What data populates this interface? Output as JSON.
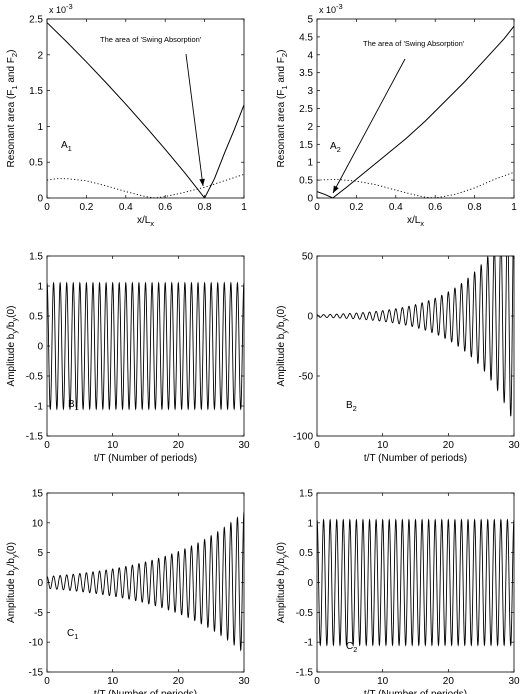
{
  "chart_data": [
    {
      "id": "A1",
      "type": "line",
      "panel_label": "A",
      "panel_sub": "1",
      "ylabel": "Resonant area (F_1 and F_2)",
      "xlabel": "x/L_x",
      "exponent": "x 10^-3",
      "xlim": [
        0,
        1
      ],
      "ylim": [
        0,
        2.5
      ],
      "xticks": [
        0,
        0.2,
        0.4,
        0.6,
        0.8,
        1
      ],
      "yticks": [
        0,
        0.5,
        1,
        1.5,
        2,
        2.5
      ],
      "annotation": "The area of 'Swing Absorption'",
      "series": [
        {
          "style": "solid",
          "x": [
            0,
            0.1,
            0.2,
            0.3,
            0.4,
            0.5,
            0.6,
            0.7,
            0.8,
            0.85,
            0.9,
            0.95,
            1.0
          ],
          "values": [
            2.45,
            2.18,
            1.9,
            1.61,
            1.31,
            1.0,
            0.68,
            0.35,
            0.0,
            0.27,
            0.62,
            0.95,
            1.3
          ]
        },
        {
          "style": "dotted",
          "x": [
            0,
            0.05,
            0.1,
            0.2,
            0.3,
            0.4,
            0.5,
            0.55,
            0.6,
            0.7,
            0.8,
            0.9,
            1.0
          ],
          "values": [
            0.25,
            0.27,
            0.27,
            0.24,
            0.17,
            0.09,
            0.02,
            0.0,
            0.02,
            0.08,
            0.15,
            0.24,
            0.33
          ]
        }
      ]
    },
    {
      "id": "A2",
      "type": "line",
      "panel_label": "A",
      "panel_sub": "2",
      "ylabel": "Resonant area (F_1 and F_2)",
      "xlabel": "x/L_x",
      "exponent": "x 10^-3",
      "xlim": [
        0,
        1
      ],
      "ylim": [
        0,
        5
      ],
      "xticks": [
        0,
        0.2,
        0.4,
        0.6,
        0.8,
        1
      ],
      "yticks": [
        0,
        0.5,
        1,
        1.5,
        2,
        2.5,
        3,
        3.5,
        4,
        4.5,
        5
      ],
      "annotation": "The area of 'Swing Absorption'",
      "series": [
        {
          "style": "solid",
          "x": [
            0,
            0.04,
            0.08,
            0.15,
            0.25,
            0.35,
            0.45,
            0.55,
            0.65,
            0.75,
            0.85,
            0.95,
            1.0
          ],
          "values": [
            0.18,
            0.1,
            0.0,
            0.3,
            0.75,
            1.2,
            1.65,
            2.15,
            2.7,
            3.25,
            3.85,
            4.45,
            4.8
          ]
        },
        {
          "style": "dotted",
          "x": [
            0,
            0.1,
            0.2,
            0.3,
            0.4,
            0.5,
            0.55,
            0.6,
            0.7,
            0.8,
            0.9,
            1.0
          ],
          "values": [
            0.5,
            0.52,
            0.47,
            0.37,
            0.22,
            0.08,
            0.02,
            0.0,
            0.1,
            0.28,
            0.52,
            0.72
          ]
        }
      ]
    },
    {
      "id": "B1",
      "type": "line",
      "panel_label": "B",
      "panel_sub": "1",
      "ylabel": "Amplitude b_y/b_y(0)",
      "xlabel": "t/T (Number of periods)",
      "xlim": [
        0,
        30
      ],
      "ylim": [
        -1.5,
        1.5
      ],
      "xticks": [
        0,
        10,
        20,
        30
      ],
      "yticks": [
        -1.5,
        -1,
        -0.5,
        0,
        0.5,
        1,
        1.5
      ],
      "oscillation": {
        "periods": 30,
        "envelope": "constant",
        "amplitude": 1.05
      }
    },
    {
      "id": "B2",
      "type": "line",
      "panel_label": "B",
      "panel_sub": "2",
      "ylabel": "Amplitude b_y/b_y(0)",
      "xlabel": "t/T (Number of periods)",
      "xlim": [
        0,
        30
      ],
      "ylim": [
        -100,
        50
      ],
      "xticks": [
        0,
        10,
        20,
        30
      ],
      "yticks": [
        -100,
        -50,
        0,
        50
      ],
      "oscillation": {
        "periods": 30,
        "envelope": "growing",
        "amplitude_start": 1,
        "amplitude_end": 90
      }
    },
    {
      "id": "C1",
      "type": "line",
      "panel_label": "C",
      "panel_sub": "1",
      "ylabel": "Amplitude b_y/b_y(0)",
      "xlabel": "t/T (Number of periods)",
      "xlim": [
        0,
        30
      ],
      "ylim": [
        -15,
        15
      ],
      "xticks": [
        0,
        10,
        20,
        30
      ],
      "yticks": [
        -15,
        -10,
        -5,
        0,
        5,
        10,
        15
      ],
      "oscillation": {
        "periods": 30,
        "envelope": "growing",
        "amplitude_start": 1,
        "amplitude_end": 11.8
      }
    },
    {
      "id": "C2",
      "type": "line",
      "panel_label": "C",
      "panel_sub": "2",
      "ylabel": "Amplitude b_y/b_y(0)",
      "xlabel": "t/T (Number of periods)",
      "xlim": [
        0,
        30
      ],
      "ylim": [
        -1.5,
        1.5
      ],
      "xticks": [
        0,
        10,
        20,
        30
      ],
      "yticks": [
        -1.5,
        -1,
        -0.5,
        0,
        0.5,
        1,
        1.5
      ],
      "oscillation": {
        "periods": 30,
        "envelope": "constant",
        "amplitude": 1.05
      }
    }
  ]
}
